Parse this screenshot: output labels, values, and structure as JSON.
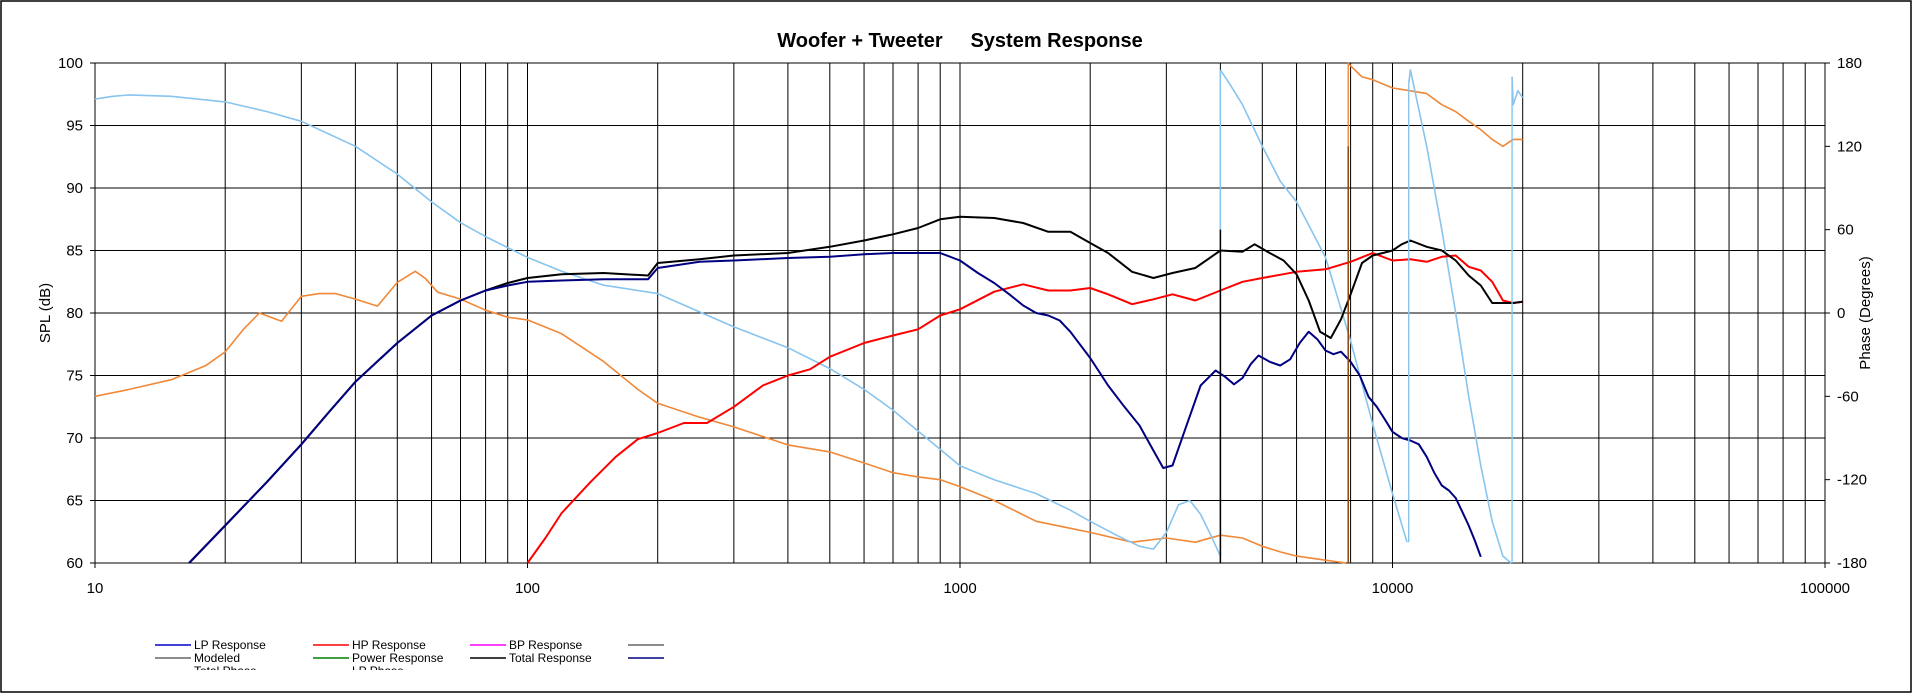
{
  "chart_data": {
    "type": "line",
    "title": "Woofer + Tweeter     System Response",
    "xlabel": "",
    "ylabel": "SPL (dB)",
    "y2label": "Phase (Degrees)",
    "x_scale": "log",
    "xlim": [
      10,
      100000
    ],
    "ylim": [
      60,
      100
    ],
    "y2lim": [
      -180,
      180
    ],
    "grid": true,
    "x_ticks": [
      "10",
      "100",
      "1000",
      "10000",
      "100000"
    ],
    "y_ticks": [
      "60",
      "65",
      "70",
      "75",
      "80",
      "85",
      "90",
      "95",
      "100"
    ],
    "y2_ticks": [
      "-180",
      "-120",
      "-60",
      "0",
      "60",
      "120",
      "180"
    ],
    "legend_position": "bottom-left",
    "legend": [
      {
        "label": "LP Response",
        "color": "#0000cc"
      },
      {
        "label": "HP Response",
        "color": "#ff0000"
      },
      {
        "label": "BP Response",
        "color": "#ff00ff"
      },
      {
        "label": "",
        "color": "#666666"
      },
      {
        "label": "Modeled",
        "color": "#666666"
      },
      {
        "label": "Power Response",
        "color": "#008000"
      },
      {
        "label": "Total Response",
        "color": "#000000"
      },
      {
        "label": "",
        "color": "#000080"
      },
      {
        "label": "Total Phase",
        "color": "#f4a460"
      },
      {
        "label": "LP Phase",
        "color": "#9ecbf0"
      }
    ],
    "series": [
      {
        "name": "LP Response",
        "color": "#000080",
        "axis": "y",
        "x": [
          16.5,
          20,
          25,
          30,
          35,
          40,
          50,
          60,
          70,
          80,
          90,
          100,
          120,
          150,
          190,
          200,
          250,
          300,
          400,
          500,
          600,
          700,
          850,
          900,
          1000,
          1100,
          1200,
          1300,
          1400,
          1500,
          1600,
          1700,
          1800,
          2000,
          2200,
          2400,
          2600,
          2800,
          2950,
          3100,
          3300,
          3600,
          3900,
          4100,
          4300,
          4500,
          4700,
          4900,
          5200,
          5500,
          5800,
          6100,
          6400,
          6700,
          7000,
          7300,
          7600,
          8000,
          8400,
          8800,
          9200,
          9600,
          10000,
          10500,
          11000,
          11500,
          12000,
          12500,
          13000,
          13500,
          14000,
          14500,
          15000,
          15500,
          16000
        ],
        "y": [
          60,
          63,
          66.5,
          69.5,
          72.2,
          74.5,
          77.6,
          79.8,
          81,
          81.8,
          82.2,
          82.5,
          82.6,
          82.7,
          82.7,
          83.6,
          84.1,
          84.2,
          84.4,
          84.5,
          84.7,
          84.8,
          84.8,
          84.8,
          84.2,
          83.2,
          82.4,
          81.5,
          80.6,
          80,
          79.8,
          79.4,
          78.5,
          76.4,
          74.2,
          72.5,
          71,
          69,
          67.6,
          67.8,
          70.5,
          74.2,
          75.4,
          74.9,
          74.3,
          74.8,
          75.9,
          76.6,
          76.1,
          75.8,
          76.3,
          77.6,
          78.5,
          77.9,
          77,
          76.7,
          76.9,
          76.1,
          75,
          73.3,
          72.5,
          71.5,
          70.5,
          70,
          69.8,
          69.5,
          68.5,
          67.2,
          66.2,
          65.8,
          65.2,
          64.1,
          63,
          61.8,
          60.5
        ]
      },
      {
        "name": "HP Response",
        "color": "#ff0000",
        "axis": "y",
        "x": [
          100,
          110,
          120,
          140,
          160,
          180,
          200,
          230,
          260,
          300,
          350,
          400,
          450,
          500,
          600,
          700,
          800,
          900,
          1000,
          1200,
          1400,
          1600,
          1800,
          2000,
          2200,
          2500,
          2800,
          3100,
          3500,
          4000,
          4500,
          5000,
          6000,
          7000,
          8000,
          9000,
          10000,
          11000,
          12000,
          13000,
          14000,
          15000,
          16000,
          17000,
          18000,
          19000,
          20000
        ],
        "y": [
          60,
          62,
          64,
          66.5,
          68.5,
          69.9,
          70.4,
          71.2,
          71.2,
          72.5,
          74.2,
          75,
          75.5,
          76.5,
          77.6,
          78.2,
          78.7,
          79.8,
          80.3,
          81.7,
          82.3,
          81.8,
          81.8,
          82,
          81.5,
          80.7,
          81.1,
          81.5,
          81,
          81.8,
          82.5,
          82.8,
          83.3,
          83.5,
          84.1,
          84.8,
          84.2,
          84.3,
          84.1,
          84.5,
          84.6,
          83.7,
          83.4,
          82.5,
          81,
          80.8,
          80.9
        ]
      },
      {
        "name": "Total Response",
        "color": "#000000",
        "axis": "y",
        "x": [
          16.5,
          20,
          25,
          30,
          35,
          40,
          50,
          60,
          70,
          80,
          90,
          100,
          120,
          150,
          190,
          200,
          250,
          300,
          400,
          500,
          600,
          700,
          800,
          900,
          1000,
          1200,
          1400,
          1600,
          1800,
          2000,
          2200,
          2500,
          2800,
          3100,
          3500,
          4000,
          4500,
          4800,
          5200,
          5600,
          6000,
          6400,
          6800,
          7200,
          7600,
          8000,
          8500,
          9000,
          9500,
          10000,
          10500,
          11000,
          12000,
          13000,
          14000,
          15000,
          16000,
          17000,
          18000,
          19000,
          20000
        ],
        "y": [
          60,
          63,
          66.5,
          69.5,
          72.2,
          74.5,
          77.6,
          79.8,
          81,
          81.8,
          82.4,
          82.8,
          83.1,
          83.2,
          83,
          84,
          84.3,
          84.6,
          84.8,
          85.3,
          85.8,
          86.3,
          86.8,
          87.5,
          87.7,
          87.6,
          87.2,
          86.5,
          86.5,
          85.6,
          84.8,
          83.3,
          82.8,
          83.2,
          83.6,
          85,
          84.9,
          85.5,
          84.8,
          84.2,
          83.1,
          81,
          78.5,
          78,
          79.5,
          81.5,
          84,
          84.6,
          84.8,
          85,
          85.5,
          85.8,
          85.3,
          85,
          84.2,
          83,
          82.2,
          80.8,
          80.8,
          80.8,
          80.9
        ]
      },
      {
        "name": "Total Phase",
        "color": "#f08838",
        "axis": "y2",
        "x": [
          10,
          12,
          15,
          18,
          20,
          22,
          24,
          27,
          30,
          33,
          36,
          40,
          45,
          50,
          55,
          58,
          62,
          70,
          80,
          90,
          100,
          120,
          150,
          180,
          200,
          250,
          300,
          400,
          500,
          600,
          700,
          800,
          900,
          1000,
          1200,
          1500,
          1800,
          2000,
          2500,
          3000,
          3500,
          4000,
          4500,
          5000,
          5500,
          6000,
          7000,
          7800,
          7900,
          8000,
          8500,
          9000,
          10000,
          11000,
          12000,
          13000,
          14000,
          15000,
          16000,
          17000,
          18000,
          19000,
          20000
        ],
        "y": [
          -60,
          -55,
          -48,
          -38,
          -28,
          -12,
          0,
          -6,
          12,
          14,
          14,
          10,
          5,
          22,
          30,
          25,
          15,
          10,
          2,
          -3,
          -5,
          -15,
          -35,
          -55,
          -65,
          -75,
          -82,
          -95,
          -100,
          -108,
          -115,
          -118,
          -120,
          -125,
          -135,
          -150,
          -155,
          -158,
          -165,
          -162,
          -165,
          -160,
          -162,
          -168,
          -172,
          -175,
          -178,
          -180,
          180,
          178,
          170,
          168,
          162,
          160,
          158,
          150,
          145,
          138,
          132,
          125,
          120,
          125,
          125
        ]
      },
      {
        "name": "LP Phase",
        "color": "#88c4ee",
        "axis": "y2",
        "x": [
          10,
          11,
          12,
          15,
          20,
          25,
          30,
          40,
          50,
          60,
          70,
          80,
          100,
          120,
          150,
          200,
          300,
          400,
          500,
          600,
          700,
          800,
          1000,
          1200,
          1500,
          1800,
          2000,
          2300,
          2600,
          2800,
          3000,
          3200,
          3400,
          3600,
          3800,
          4000,
          4001,
          4200,
          4500,
          5000,
          5500,
          6000,
          7000,
          8000,
          9000,
          10000,
          10800,
          10900,
          11000,
          12000,
          13000,
          14000,
          15000,
          16000,
          17000,
          18000,
          18800,
          18900,
          19000,
          19500,
          20000
        ],
        "y": [
          154,
          156,
          157,
          156,
          152,
          145,
          138,
          120,
          100,
          80,
          65,
          55,
          40,
          30,
          20,
          14,
          -10,
          -25,
          -40,
          -55,
          -70,
          -85,
          -110,
          -120,
          -130,
          -142,
          -150,
          -160,
          -168,
          -170,
          -158,
          -138,
          -135,
          -145,
          -160,
          -175,
          175,
          165,
          150,
          120,
          95,
          80,
          40,
          -20,
          -80,
          -130,
          -165,
          165,
          175,
          120,
          60,
          0,
          -60,
          -110,
          -150,
          -175,
          -180,
          170,
          150,
          160,
          155
        ]
      }
    ],
    "markers": [
      {
        "x": 4000,
        "y1": -180,
        "y2": 60,
        "color": "#000000"
      },
      {
        "x": 7900,
        "y1": -180,
        "y2": 120,
        "color": "#8b4513"
      }
    ]
  }
}
